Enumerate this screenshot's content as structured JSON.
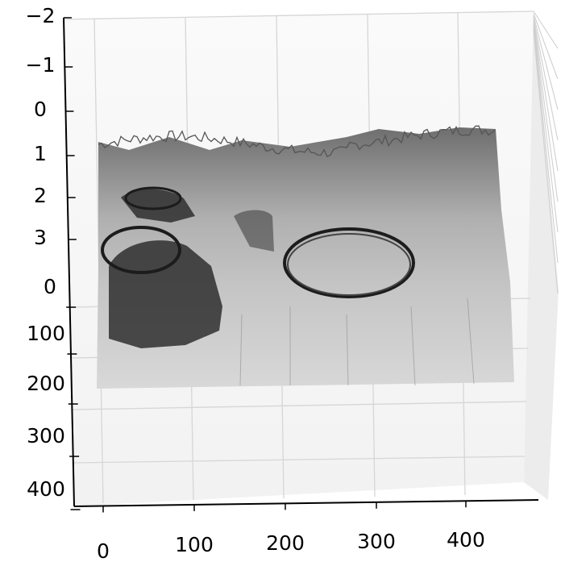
{
  "chart_data": {
    "type": "surface",
    "projection": "3d",
    "colormap": "gray",
    "grid": true,
    "x": {
      "ticks": [
        0,
        100,
        200,
        300,
        400
      ]
    },
    "y": {
      "ticks": [
        0,
        100,
        200,
        300,
        400
      ]
    },
    "z": {
      "ticks": [
        -2,
        -1,
        0,
        1,
        2,
        3
      ],
      "tick_labels": [
        "−2",
        "−1",
        "0",
        "1",
        "2",
        "3"
      ]
    }
  }
}
